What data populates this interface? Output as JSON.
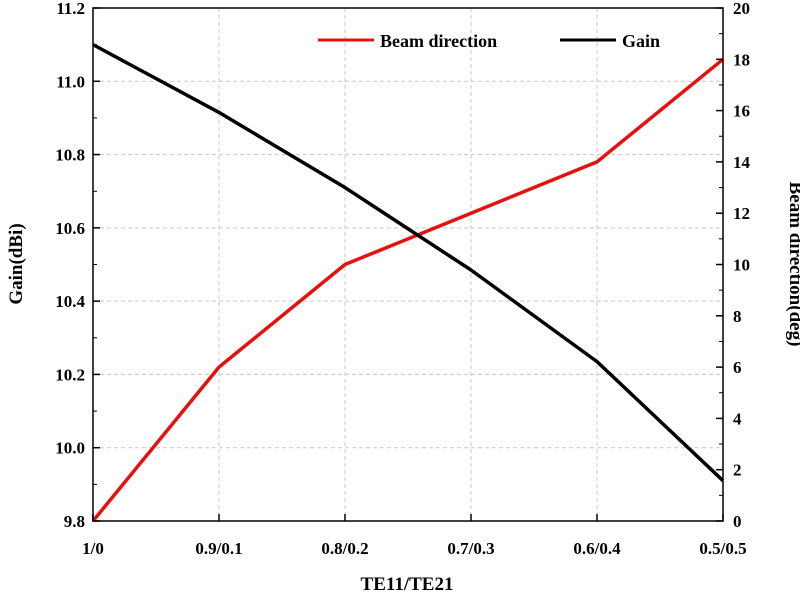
{
  "chart_data": {
    "type": "line",
    "xlabel": "TE11/TE21",
    "ylabel_left": "Gain(dBi)",
    "ylabel_right": "Beam direction(deg)",
    "categories": [
      "1/0",
      "0.9/0.1",
      "0.8/0.2",
      "0.7/0.3",
      "0.6/0.4",
      "0.5/0.5"
    ],
    "left_axis": {
      "ylim": [
        9.8,
        11.2
      ],
      "ticks": [
        "9.8",
        "10.0",
        "10.2",
        "10.4",
        "10.6",
        "10.8",
        "11.0",
        "11.2"
      ]
    },
    "right_axis": {
      "ylim": [
        0,
        20
      ],
      "ticks": [
        "0",
        "2",
        "4",
        "6",
        "8",
        "10",
        "12",
        "14",
        "16",
        "18",
        "20"
      ]
    },
    "grid": true,
    "legend_position": "top-right",
    "series": [
      {
        "name": "Beam direction",
        "axis": "right",
        "color": "#e8100c",
        "values": [
          0,
          6,
          10,
          12,
          14,
          18
        ]
      },
      {
        "name": "Gain",
        "axis": "left",
        "color": "#000000",
        "values": [
          11.1,
          10.915,
          10.71,
          10.485,
          10.235,
          9.91
        ]
      }
    ]
  }
}
